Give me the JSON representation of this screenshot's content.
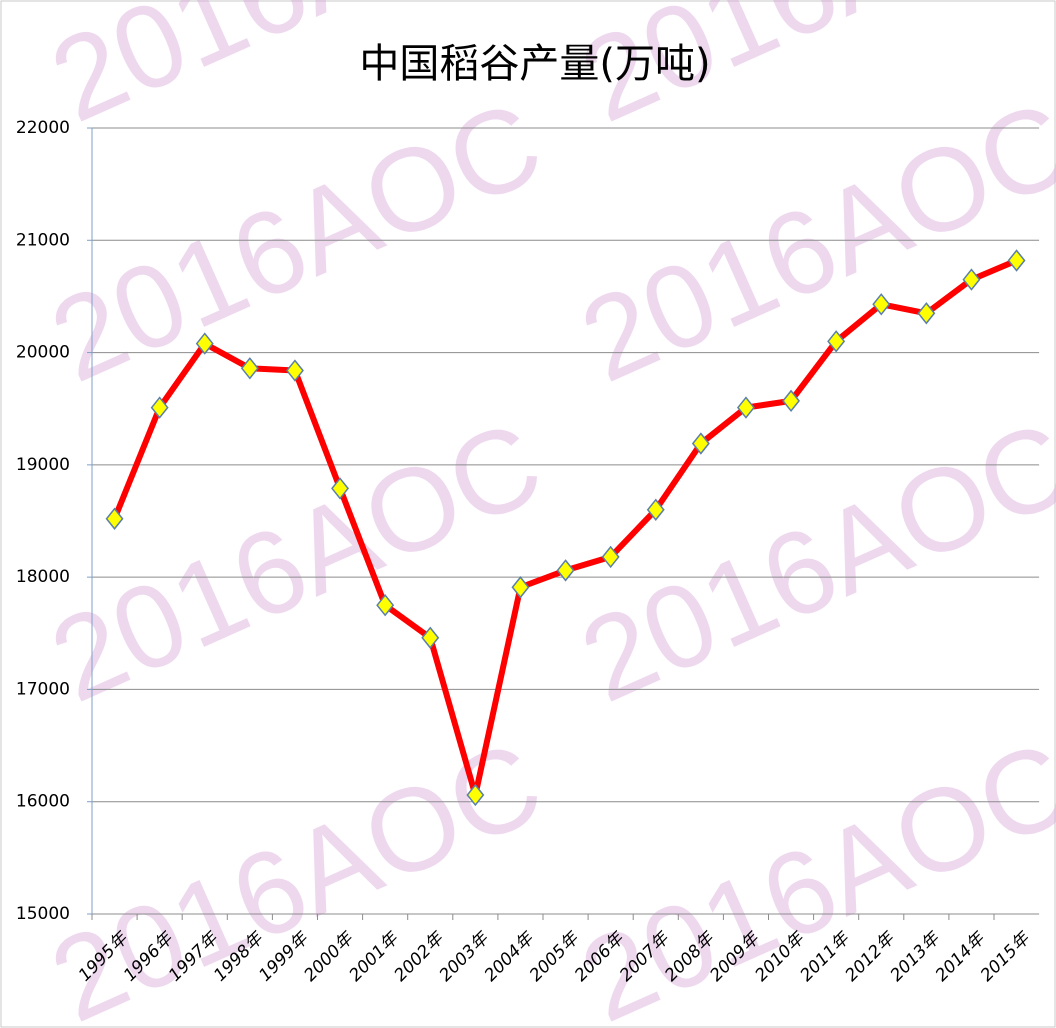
{
  "chart_data": {
    "type": "line",
    "title": "中国稻谷产量(万吨)",
    "watermark": "2016AOC",
    "categories": [
      "1995年",
      "1996年",
      "1997年",
      "1998年",
      "1999年",
      "2000年",
      "2001年",
      "2002年",
      "2003年",
      "2004年",
      "2005年",
      "2006年",
      "2007年",
      "2008年",
      "2009年",
      "2010年",
      "2011年",
      "2012年",
      "2013年",
      "2014年",
      "2015年"
    ],
    "series": [
      {
        "name": "稻谷产量",
        "color": "#ff0000",
        "marker_color": "#ffff00",
        "values": [
          18520,
          19510,
          20080,
          19860,
          19840,
          18790,
          17750,
          17460,
          16060,
          17910,
          18060,
          18180,
          18600,
          19190,
          19510,
          19570,
          20100,
          20430,
          20350,
          20650,
          20820
        ]
      }
    ],
    "ylim": [
      15000,
      22000
    ],
    "yticks": [
      15000,
      16000,
      17000,
      18000,
      19000,
      20000,
      21000,
      22000
    ],
    "grid": true,
    "legend": false
  }
}
